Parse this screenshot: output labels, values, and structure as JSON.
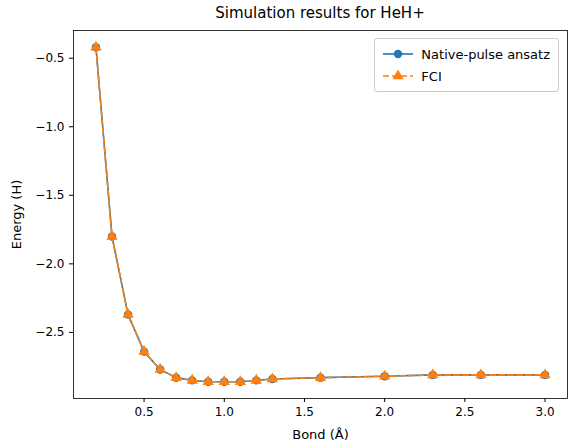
{
  "chart_data": {
    "type": "line",
    "title": "Simulation results for HeH+",
    "x_label": "Bond (Å)",
    "y_label": "Energy (H)",
    "x": [
      0.2,
      0.3,
      0.4,
      0.5,
      0.6,
      0.7,
      0.8,
      0.9,
      1.0,
      1.1,
      1.2,
      1.3,
      1.6,
      2.0,
      2.3,
      2.6,
      3.0
    ],
    "series": [
      {
        "name": "Native-pulse ansatz",
        "color": "#1f77b4",
        "marker": "circle",
        "line_style": "solid",
        "values": [
          -0.42,
          -1.8,
          -2.37,
          -2.64,
          -2.77,
          -2.83,
          -2.85,
          -2.86,
          -2.86,
          -2.86,
          -2.85,
          -2.84,
          -2.83,
          -2.82,
          -2.81,
          -2.81,
          -2.81
        ]
      },
      {
        "name": "FCI",
        "color": "#ff7f0e",
        "marker": "triangle",
        "line_style": "dashed",
        "values": [
          -0.42,
          -1.8,
          -2.37,
          -2.64,
          -2.77,
          -2.83,
          -2.85,
          -2.86,
          -2.86,
          -2.86,
          -2.85,
          -2.84,
          -2.83,
          -2.82,
          -2.81,
          -2.81,
          -2.81
        ]
      }
    ],
    "xlim": [
      0.06,
      3.14
    ],
    "ylim": [
      -2.982,
      -0.298
    ],
    "xticks": [
      0.5,
      {
        "value": 1,
        "label": "1.0"
      },
      1.5,
      {
        "value": 2,
        "label": "2.0"
      },
      2.5,
      {
        "value": 3,
        "label": "3.0"
      }
    ],
    "yticks": [
      {
        "value": -2.5,
        "label": "−2.5"
      },
      {
        "value": -2.0,
        "label": "−2.0"
      },
      {
        "value": -1.5,
        "label": "−1.5"
      },
      {
        "value": -1.0,
        "label": "−1.0"
      },
      {
        "value": -0.5,
        "label": "−0.5"
      }
    ],
    "grid": false,
    "legend": "upper right"
  }
}
